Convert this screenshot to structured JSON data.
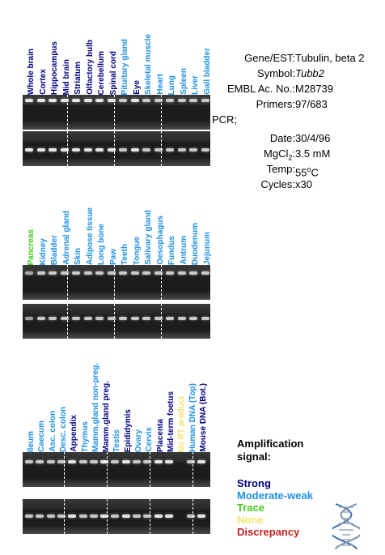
{
  "colors": {
    "strong": "#000080",
    "moderate_weak": "#1e90e6",
    "trace": "#44c81e",
    "none": "#f5e26a",
    "discrepancy": "#c81e1e"
  },
  "panels": [
    {
      "lanes": [
        {
          "label": "Whole brain",
          "signal": "strong"
        },
        {
          "label": "Cortex",
          "signal": "strong"
        },
        {
          "label": "Hippocampus",
          "signal": "strong"
        },
        {
          "label": "Mid brain",
          "signal": "strong"
        },
        {
          "label": "Striatum",
          "signal": "strong"
        },
        {
          "label": "Olfactory bulb",
          "signal": "strong"
        },
        {
          "label": "Cerebellum",
          "signal": "strong"
        },
        {
          "label": "Spinal cord",
          "signal": "strong"
        },
        {
          "label": "Pituitary gland",
          "signal": "moderate_weak"
        },
        {
          "label": "Eye",
          "signal": "strong"
        },
        {
          "label": "Skeletal muscle",
          "signal": "moderate_weak"
        },
        {
          "label": "Heart",
          "signal": "moderate_weak"
        },
        {
          "label": "Lung",
          "signal": "moderate_weak"
        },
        {
          "label": "Spleen",
          "signal": "moderate_weak"
        },
        {
          "label": "Liver",
          "signal": "moderate_weak"
        },
        {
          "label": "Gall bladder",
          "signal": "moderate_weak"
        }
      ]
    },
    {
      "lanes": [
        {
          "label": "Pancreas",
          "signal": "trace"
        },
        {
          "label": "Kidney",
          "signal": "moderate_weak"
        },
        {
          "label": "Bladder",
          "signal": "moderate_weak"
        },
        {
          "label": "Adrenal gland",
          "signal": "moderate_weak"
        },
        {
          "label": "Skin",
          "signal": "moderate_weak"
        },
        {
          "label": "Adipose tissue",
          "signal": "moderate_weak"
        },
        {
          "label": "Long bone",
          "signal": "moderate_weak"
        },
        {
          "label": "Paw",
          "signal": "moderate_weak"
        },
        {
          "label": "Teeth",
          "signal": "moderate_weak"
        },
        {
          "label": "Tongue",
          "signal": "moderate_weak"
        },
        {
          "label": "Salivary gland",
          "signal": "moderate_weak"
        },
        {
          "label": "Oesophagus",
          "signal": "moderate_weak"
        },
        {
          "label": "Fundus",
          "signal": "moderate_weak"
        },
        {
          "label": "Antrum",
          "signal": "moderate_weak"
        },
        {
          "label": "Duodenum",
          "signal": "moderate_weak"
        },
        {
          "label": "Jejunum",
          "signal": "moderate_weak"
        }
      ]
    },
    {
      "lanes": [
        {
          "label": "Ileum",
          "signal": "moderate_weak"
        },
        {
          "label": "Caecum",
          "signal": "moderate_weak"
        },
        {
          "label": "Asc. colon",
          "signal": "moderate_weak"
        },
        {
          "label": "Desc. colon",
          "signal": "moderate_weak"
        },
        {
          "label": "Appendix",
          "signal": "strong"
        },
        {
          "label": "Thymus",
          "signal": "moderate_weak"
        },
        {
          "label": "Mamm.gland non-preg.",
          "signal": "moderate_weak"
        },
        {
          "label": "Mamm.gland preg.",
          "signal": "strong"
        },
        {
          "label": "Testis",
          "signal": "moderate_weak"
        },
        {
          "label": "Epididymis",
          "signal": "strong"
        },
        {
          "label": "Ovary",
          "signal": "moderate_weak"
        },
        {
          "label": "Cervix",
          "signal": "moderate_weak"
        },
        {
          "label": "Placenta",
          "signal": "strong"
        },
        {
          "label": "Mid-term foetus",
          "signal": "strong"
        },
        {
          "label": "No RT product",
          "signal": "none"
        },
        {
          "label": "Human DNA (Top)",
          "signal": "moderate_weak"
        },
        {
          "label": "Mouse DNA (Bot.)",
          "signal": "strong"
        }
      ]
    }
  ],
  "info": {
    "gene_key": "Gene/EST:",
    "gene_val": "Tubulin, beta 2",
    "symbol_key": "Symbol:",
    "symbol_val": "Tubb2",
    "embl_key": "EMBL Ac. No.:",
    "embl_val": "M28739",
    "primers_key": "Primers:",
    "primers_val": "97/683",
    "pcr_label": "PCR;",
    "date_key": "Date:",
    "date_val": "30/4/96",
    "mgcl_key": "MgCl",
    "mgcl_sub": "2",
    "mgcl_colon": ":",
    "mgcl_val": "3.5 mM",
    "temp_key": "Temp:",
    "temp_val": "55",
    "temp_sup": "o",
    "temp_unit": "C",
    "cycles_key": "Cycles:",
    "cycles_val": "x30"
  },
  "legend": {
    "title_line1": "Amplification",
    "title_line2": "signal:",
    "strong": "Strong",
    "moderate_weak": "Moderate-weak",
    "trace": "Trace",
    "none": "None",
    "discrepancy": "Discrepancy"
  }
}
